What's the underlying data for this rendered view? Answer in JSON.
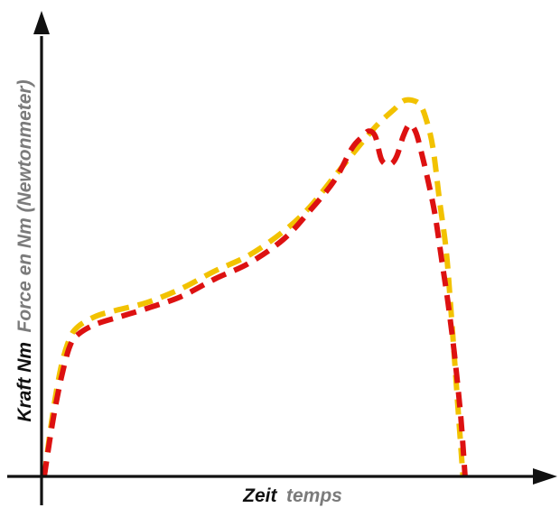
{
  "chart_data": {
    "type": "line",
    "title": "",
    "xlabel": {
      "primary": "Zeit",
      "secondary": "temps"
    },
    "ylabel": {
      "primary": "Kraft Nm",
      "secondary": "Force en Nm (Newtonmeter)"
    },
    "xlim": [
      0,
      100
    ],
    "ylim": [
      0,
      100
    ],
    "grid": false,
    "legend": "none",
    "series": [
      {
        "color": "#f2c200",
        "x": [
          0,
          2,
          4,
          6,
          8,
          12,
          16,
          24,
          32,
          40,
          48,
          56,
          62,
          68,
          74,
          78,
          82,
          84,
          86,
          88,
          89.5,
          91,
          92.5,
          94,
          95,
          96,
          97,
          98
        ],
        "y": [
          0,
          16,
          28,
          35,
          38,
          40.5,
          41.8,
          44,
          47.5,
          52,
          56,
          62,
          68,
          76,
          84,
          89,
          93,
          95,
          95.2,
          94,
          90,
          83,
          70,
          58,
          45,
          30,
          15,
          0
        ]
      },
      {
        "color": "#dd1111",
        "x": [
          0,
          2,
          4,
          6,
          8,
          12,
          18,
          24,
          32,
          40,
          48,
          56,
          62,
          68,
          72,
          74.5,
          76,
          77.5,
          79,
          81,
          82.5,
          84,
          85.5,
          87,
          88.5,
          90,
          91.5,
          93,
          94.5,
          96,
          97.5,
          98.5
        ],
        "y": [
          0,
          14,
          25,
          33,
          36,
          38.5,
          40.5,
          42.5,
          45.5,
          50,
          54,
          60,
          67,
          75,
          83,
          86,
          87.4,
          86,
          80,
          79,
          81,
          86,
          89,
          87,
          81,
          74,
          66,
          55,
          44,
          31,
          15,
          0
        ]
      }
    ]
  }
}
